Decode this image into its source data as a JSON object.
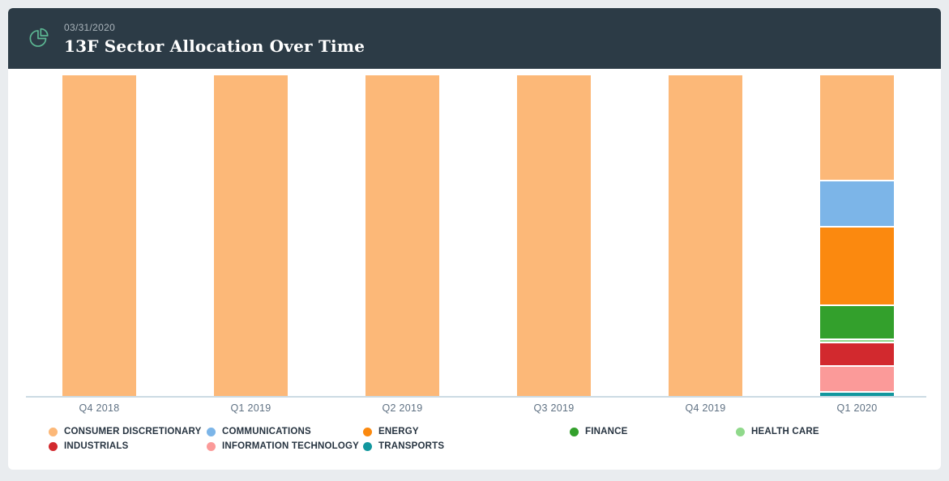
{
  "header": {
    "date": "03/31/2020",
    "title": "13F Sector Allocation Over Time",
    "icon": "pie-chart-icon"
  },
  "colors": {
    "page_bg": "#e9ecef",
    "card_bg": "#ffffff",
    "header_bg": "#2c3b46",
    "header_date": "#a9b3ba",
    "icon_accent": "#5cb793",
    "axis_line": "#ccdbe4",
    "axis_label": "#5f7183",
    "legend_text": "#263340"
  },
  "chart_data": {
    "type": "bar",
    "stacked": true,
    "unit": "percent",
    "title": "13F Sector Allocation Over Time",
    "categories": [
      "Q4 2018",
      "Q1 2019",
      "Q2 2019",
      "Q3 2019",
      "Q4 2019",
      "Q1 2020"
    ],
    "series": [
      {
        "name": "CONSUMER DISCRETIONARY",
        "color": "#fcb878",
        "values": [
          100,
          100,
          100,
          100,
          100,
          32.5
        ]
      },
      {
        "name": "COMMUNICATIONS",
        "color": "#7cb5e8",
        "values": [
          0,
          0,
          0,
          0,
          0,
          14.5
        ]
      },
      {
        "name": "ENERGY",
        "color": "#fb890f",
        "values": [
          0,
          0,
          0,
          0,
          0,
          24.5
        ]
      },
      {
        "name": "FINANCE",
        "color": "#33a02c",
        "values": [
          0,
          0,
          0,
          0,
          0,
          10.5
        ]
      },
      {
        "name": "HEALTH CARE",
        "color": "#90d98b",
        "values": [
          0,
          0,
          0,
          0,
          0,
          1.0
        ]
      },
      {
        "name": "INDUSTRIALS",
        "color": "#d2292e",
        "values": [
          0,
          0,
          0,
          0,
          0,
          7.5
        ]
      },
      {
        "name": "INFORMATION TECHNOLOGY",
        "color": "#fb9a99",
        "values": [
          0,
          0,
          0,
          0,
          0,
          8.0
        ]
      },
      {
        "name": "TRANSPORTS",
        "color": "#12979e",
        "values": [
          0,
          0,
          0,
          0,
          0,
          1.5
        ]
      }
    ],
    "ylim": [
      0,
      100
    ],
    "grid": false,
    "legend_position": "bottom"
  }
}
